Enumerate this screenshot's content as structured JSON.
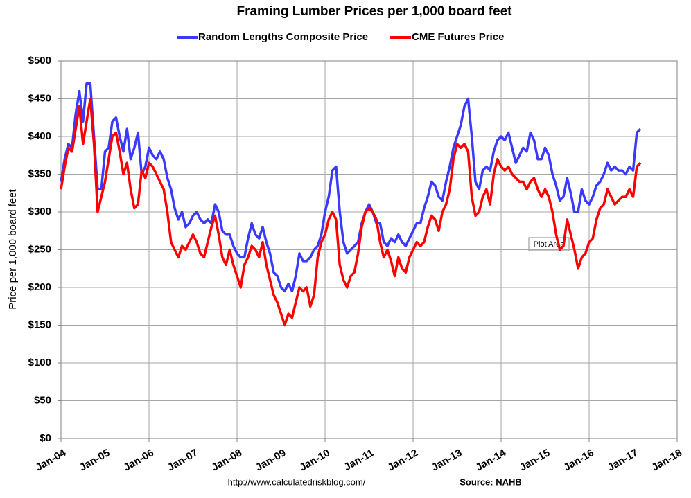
{
  "chart_data": {
    "type": "line",
    "title": "Framing Lumber Prices per 1,000 board feet",
    "y_label": "Price per 1,000 board feet",
    "source": "Source: NAHB",
    "url": "http://www.calculatedriskblog.com/",
    "annotation": "Plot Area",
    "grid": true,
    "legend": "top",
    "x": [
      "Jan-04",
      "Feb-04",
      "Mar-04",
      "Apr-04",
      "May-04",
      "Jun-04",
      "Jul-04",
      "Aug-04",
      "Sep-04",
      "Oct-04",
      "Nov-04",
      "Dec-04",
      "Jan-05",
      "Feb-05",
      "Mar-05",
      "Apr-05",
      "May-05",
      "Jun-05",
      "Jul-05",
      "Aug-05",
      "Sep-05",
      "Oct-05",
      "Nov-05",
      "Dec-05",
      "Jan-06",
      "Feb-06",
      "Mar-06",
      "Apr-06",
      "May-06",
      "Jun-06",
      "Jul-06",
      "Aug-06",
      "Sep-06",
      "Oct-06",
      "Nov-06",
      "Dec-06",
      "Jan-07",
      "Feb-07",
      "Mar-07",
      "Apr-07",
      "May-07",
      "Jun-07",
      "Jul-07",
      "Aug-07",
      "Sep-07",
      "Oct-07",
      "Nov-07",
      "Dec-07",
      "Jan-08",
      "Feb-08",
      "Mar-08",
      "Apr-08",
      "May-08",
      "Jun-08",
      "Jul-08",
      "Aug-08",
      "Sep-08",
      "Oct-08",
      "Nov-08",
      "Dec-08",
      "Jan-09",
      "Feb-09",
      "Mar-09",
      "Apr-09",
      "May-09",
      "Jun-09",
      "Jul-09",
      "Aug-09",
      "Sep-09",
      "Oct-09",
      "Nov-09",
      "Dec-09",
      "Jan-10",
      "Feb-10",
      "Mar-10",
      "Apr-10",
      "May-10",
      "Jun-10",
      "Jul-10",
      "Aug-10",
      "Sep-10",
      "Oct-10",
      "Nov-10",
      "Dec-10",
      "Jan-11",
      "Feb-11",
      "Mar-11",
      "Apr-11",
      "May-11",
      "Jun-11",
      "Jul-11",
      "Aug-11",
      "Sep-11",
      "Oct-11",
      "Nov-11",
      "Dec-11",
      "Jan-12",
      "Feb-12",
      "Mar-12",
      "Apr-12",
      "May-12",
      "Jun-12",
      "Jul-12",
      "Aug-12",
      "Sep-12",
      "Oct-12",
      "Nov-12",
      "Dec-12",
      "Jan-13",
      "Feb-13",
      "Mar-13",
      "Apr-13",
      "May-13",
      "Jun-13",
      "Jul-13",
      "Aug-13",
      "Sep-13",
      "Oct-13",
      "Nov-13",
      "Dec-13",
      "Jan-14",
      "Feb-14",
      "Mar-14",
      "Apr-14",
      "May-14",
      "Jun-14",
      "Jul-14",
      "Aug-14",
      "Sep-14",
      "Oct-14",
      "Nov-14",
      "Dec-14",
      "Jan-15",
      "Feb-15",
      "Mar-15",
      "Apr-15",
      "May-15",
      "Jun-15",
      "Jul-15",
      "Aug-15",
      "Sep-15",
      "Oct-15",
      "Nov-15",
      "Dec-15",
      "Jan-16",
      "Feb-16",
      "Mar-16",
      "Apr-16",
      "May-16",
      "Jun-16",
      "Jul-16",
      "Aug-16",
      "Sep-16",
      "Oct-16",
      "Nov-16",
      "Dec-16",
      "Jan-17",
      "Feb-17",
      "Mar-17"
    ],
    "series": [
      {
        "name": "Random Lengths Composite Price",
        "color": "#3a3aff",
        "values": [
          340,
          370,
          390,
          385,
          430,
          460,
          420,
          470,
          470,
          400,
          330,
          330,
          380,
          385,
          420,
          425,
          400,
          380,
          410,
          370,
          385,
          405,
          350,
          360,
          385,
          375,
          370,
          380,
          370,
          345,
          330,
          305,
          290,
          300,
          280,
          285,
          295,
          300,
          290,
          285,
          290,
          285,
          310,
          300,
          275,
          270,
          270,
          255,
          245,
          240,
          240,
          265,
          285,
          270,
          265,
          280,
          260,
          245,
          220,
          215,
          200,
          195,
          205,
          195,
          215,
          245,
          235,
          235,
          240,
          250,
          255,
          270,
          300,
          320,
          355,
          360,
          300,
          260,
          245,
          250,
          255,
          260,
          285,
          300,
          310,
          300,
          285,
          285,
          260,
          255,
          265,
          260,
          270,
          260,
          255,
          265,
          275,
          285,
          285,
          305,
          320,
          340,
          335,
          320,
          315,
          340,
          360,
          385,
          400,
          415,
          440,
          450,
          400,
          340,
          330,
          355,
          360,
          355,
          380,
          395,
          400,
          395,
          405,
          385,
          365,
          375,
          385,
          380,
          405,
          395,
          370,
          370,
          385,
          375,
          350,
          335,
          315,
          320,
          345,
          325,
          300,
          300,
          330,
          315,
          310,
          320,
          335,
          340,
          350,
          365,
          355,
          360,
          355,
          355,
          350,
          360,
          355,
          405,
          410
        ]
      },
      {
        "name": "CME Futures Price",
        "color": "#ff0000",
        "values": [
          330,
          360,
          385,
          380,
          410,
          440,
          390,
          420,
          450,
          390,
          300,
          320,
          340,
          370,
          400,
          405,
          380,
          350,
          365,
          330,
          305,
          310,
          355,
          345,
          365,
          360,
          350,
          340,
          330,
          300,
          260,
          250,
          240,
          255,
          250,
          260,
          270,
          260,
          245,
          240,
          260,
          280,
          295,
          270,
          240,
          230,
          250,
          230,
          215,
          200,
          230,
          240,
          255,
          250,
          240,
          260,
          230,
          210,
          190,
          180,
          165,
          150,
          165,
          160,
          180,
          200,
          195,
          200,
          175,
          190,
          240,
          260,
          270,
          290,
          300,
          290,
          230,
          210,
          200,
          215,
          220,
          245,
          280,
          300,
          305,
          300,
          290,
          260,
          240,
          250,
          235,
          215,
          240,
          225,
          220,
          240,
          250,
          260,
          255,
          260,
          280,
          295,
          290,
          275,
          300,
          310,
          330,
          370,
          390,
          385,
          390,
          380,
          320,
          295,
          300,
          320,
          330,
          310,
          350,
          370,
          360,
          355,
          360,
          350,
          345,
          340,
          340,
          330,
          340,
          345,
          330,
          320,
          330,
          320,
          300,
          270,
          250,
          255,
          290,
          270,
          250,
          225,
          240,
          245,
          260,
          265,
          290,
          305,
          310,
          330,
          320,
          310,
          315,
          320,
          320,
          330,
          320,
          360,
          365
        ]
      }
    ],
    "xlim": [
      "Jan-04",
      "Jan-18"
    ],
    "xticks": [
      "Jan-04",
      "Jan-05",
      "Jan-06",
      "Jan-07",
      "Jan-08",
      "Jan-09",
      "Jan-10",
      "Jan-11",
      "Jan-12",
      "Jan-13",
      "Jan-14",
      "Jan-15",
      "Jan-16",
      "Jan-17",
      "Jan-18"
    ],
    "ylim": [
      0,
      500
    ],
    "yticks": [
      {
        "value": 0,
        "label": "$0"
      },
      {
        "value": 50,
        "label": "$50"
      },
      {
        "value": 100,
        "label": "$100"
      },
      {
        "value": 150,
        "label": "$150"
      },
      {
        "value": 200,
        "label": "$200"
      },
      {
        "value": 250,
        "label": "$250"
      },
      {
        "value": 300,
        "label": "$300"
      },
      {
        "value": 350,
        "label": "$350"
      },
      {
        "value": 400,
        "label": "$400"
      },
      {
        "value": 450,
        "label": "$450"
      },
      {
        "value": 500,
        "label": "$500"
      }
    ]
  }
}
